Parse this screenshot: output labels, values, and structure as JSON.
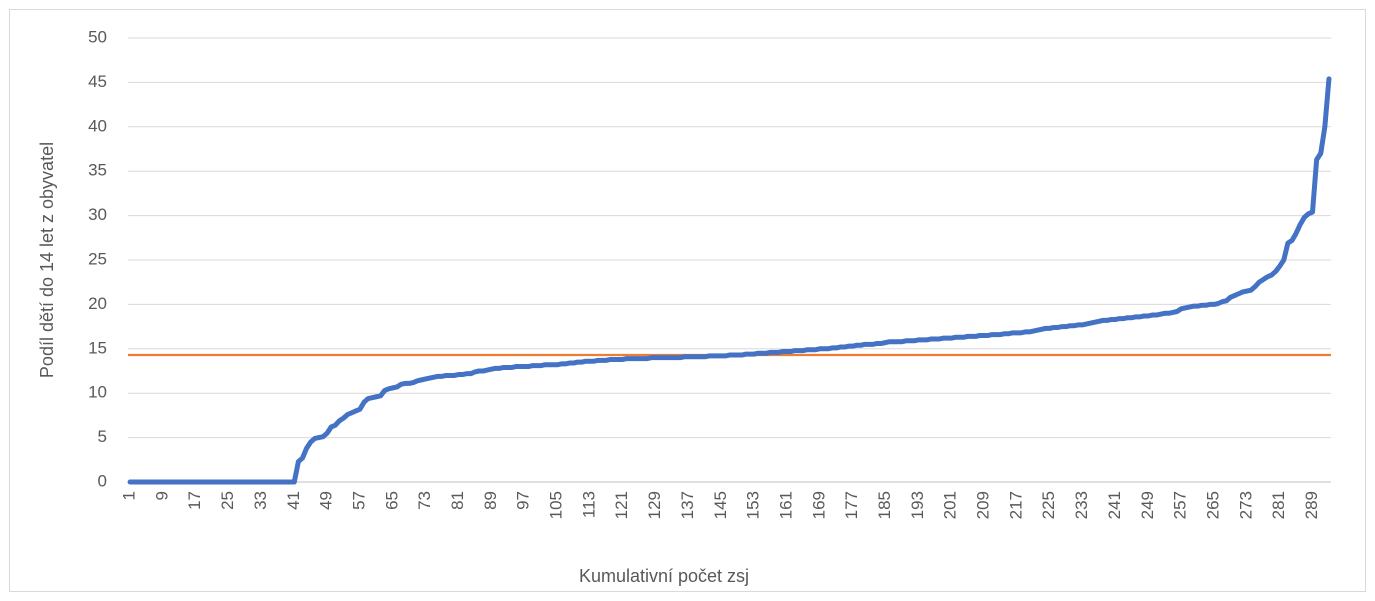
{
  "chart_data": {
    "type": "line",
    "x_label": "Kumulativní počet zsj",
    "y_label": "Podíl dětí do 14 let z obyvatel",
    "ylim": [
      0,
      50
    ],
    "yticks": [
      0,
      5,
      10,
      15,
      20,
      25,
      30,
      35,
      40,
      45,
      50
    ],
    "grid": true,
    "reference_line": {
      "value": 14.3,
      "color": "#ed7d31"
    },
    "categories": [
      "1",
      null,
      null,
      null,
      null,
      null,
      null,
      null,
      "9",
      null,
      null,
      null,
      null,
      null,
      null,
      null,
      "17",
      null,
      null,
      null,
      null,
      null,
      null,
      null,
      "25",
      null,
      null,
      null,
      null,
      null,
      null,
      null,
      "33",
      null,
      null,
      null,
      null,
      null,
      null,
      null,
      "41",
      null,
      null,
      null,
      null,
      null,
      null,
      null,
      "49",
      null,
      null,
      null,
      null,
      null,
      null,
      null,
      "57",
      null,
      null,
      null,
      null,
      null,
      null,
      null,
      "65",
      null,
      null,
      null,
      null,
      null,
      null,
      null,
      "73",
      null,
      null,
      null,
      null,
      null,
      null,
      null,
      "81",
      null,
      null,
      null,
      null,
      null,
      null,
      null,
      "89",
      null,
      null,
      null,
      null,
      null,
      null,
      null,
      "97",
      null,
      null,
      null,
      null,
      null,
      null,
      null,
      "105",
      null,
      null,
      null,
      null,
      null,
      null,
      null,
      "113",
      null,
      null,
      null,
      null,
      null,
      null,
      null,
      "121",
      null,
      null,
      null,
      null,
      null,
      null,
      null,
      "129",
      null,
      null,
      null,
      null,
      null,
      null,
      null,
      "137",
      null,
      null,
      null,
      null,
      null,
      null,
      null,
      "145",
      null,
      null,
      null,
      null,
      null,
      null,
      null,
      "153",
      null,
      null,
      null,
      null,
      null,
      null,
      null,
      "161",
      null,
      null,
      null,
      null,
      null,
      null,
      null,
      "169",
      null,
      null,
      null,
      null,
      null,
      null,
      null,
      "177",
      null,
      null,
      null,
      null,
      null,
      null,
      null,
      "185",
      null,
      null,
      null,
      null,
      null,
      null,
      null,
      "193",
      null,
      null,
      null,
      null,
      null,
      null,
      null,
      "201",
      null,
      null,
      null,
      null,
      null,
      null,
      null,
      "209",
      null,
      null,
      null,
      null,
      null,
      null,
      null,
      "217",
      null,
      null,
      null,
      null,
      null,
      null,
      null,
      "225",
      null,
      null,
      null,
      null,
      null,
      null,
      null,
      "233",
      null,
      null,
      null,
      null,
      null,
      null,
      null,
      "241",
      null,
      null,
      null,
      null,
      null,
      null,
      null,
      "249",
      null,
      null,
      null,
      null,
      null,
      null,
      null,
      "257",
      null,
      null,
      null,
      null,
      null,
      null,
      null,
      "265",
      null,
      null,
      null,
      null,
      null,
      null,
      null,
      "273",
      null,
      null,
      null,
      null,
      null,
      null,
      null,
      "281",
      null,
      null,
      null,
      null,
      null,
      null,
      null,
      "289",
      null,
      null,
      null,
      null
    ],
    "series": [
      {
        "color": "#4472c4",
        "values": [
          0,
          0,
          0,
          0,
          0,
          0,
          0,
          0,
          0,
          0,
          0,
          0,
          0,
          0,
          0,
          0,
          0,
          0,
          0,
          0,
          0,
          0,
          0,
          0,
          0,
          0,
          0,
          0,
          0,
          0,
          0,
          0,
          0,
          0,
          0,
          0,
          0,
          0,
          0,
          0,
          0,
          2.3,
          2.7,
          3.8,
          4.5,
          4.9,
          5.0,
          5.1,
          5.5,
          6.2,
          6.4,
          6.9,
          7.2,
          7.6,
          7.8,
          8.0,
          8.2,
          9.0,
          9.4,
          9.5,
          9.6,
          9.7,
          10.3,
          10.5,
          10.6,
          10.7,
          11.0,
          11.1,
          11.1,
          11.2,
          11.4,
          11.5,
          11.6,
          11.7,
          11.8,
          11.9,
          11.9,
          12.0,
          12.0,
          12.0,
          12.1,
          12.1,
          12.2,
          12.2,
          12.4,
          12.5,
          12.5,
          12.6,
          12.7,
          12.8,
          12.8,
          12.9,
          12.9,
          12.9,
          13.0,
          13.0,
          13.0,
          13.0,
          13.1,
          13.1,
          13.1,
          13.2,
          13.2,
          13.2,
          13.2,
          13.3,
          13.3,
          13.4,
          13.4,
          13.5,
          13.5,
          13.6,
          13.6,
          13.6,
          13.7,
          13.7,
          13.7,
          13.8,
          13.8,
          13.8,
          13.8,
          13.9,
          13.9,
          13.9,
          13.9,
          13.9,
          13.9,
          14.0,
          14.0,
          14.0,
          14.0,
          14.0,
          14.0,
          14.0,
          14.0,
          14.1,
          14.1,
          14.1,
          14.1,
          14.1,
          14.1,
          14.2,
          14.2,
          14.2,
          14.2,
          14.2,
          14.3,
          14.3,
          14.3,
          14.3,
          14.4,
          14.4,
          14.4,
          14.5,
          14.5,
          14.5,
          14.6,
          14.6,
          14.6,
          14.7,
          14.7,
          14.7,
          14.8,
          14.8,
          14.8,
          14.9,
          14.9,
          14.9,
          15.0,
          15.0,
          15.0,
          15.1,
          15.1,
          15.2,
          15.2,
          15.3,
          15.3,
          15.4,
          15.4,
          15.5,
          15.5,
          15.5,
          15.6,
          15.6,
          15.7,
          15.8,
          15.8,
          15.8,
          15.8,
          15.9,
          15.9,
          15.9,
          16.0,
          16.0,
          16.0,
          16.1,
          16.1,
          16.1,
          16.2,
          16.2,
          16.2,
          16.3,
          16.3,
          16.3,
          16.4,
          16.4,
          16.4,
          16.5,
          16.5,
          16.5,
          16.6,
          16.6,
          16.6,
          16.7,
          16.7,
          16.8,
          16.8,
          16.8,
          16.9,
          16.9,
          17.0,
          17.1,
          17.2,
          17.3,
          17.3,
          17.4,
          17.4,
          17.5,
          17.5,
          17.6,
          17.6,
          17.7,
          17.7,
          17.8,
          17.9,
          18.0,
          18.1,
          18.2,
          18.2,
          18.3,
          18.3,
          18.4,
          18.4,
          18.5,
          18.5,
          18.6,
          18.6,
          18.7,
          18.7,
          18.8,
          18.8,
          18.9,
          19.0,
          19.0,
          19.1,
          19.2,
          19.5,
          19.6,
          19.7,
          19.8,
          19.8,
          19.9,
          19.9,
          20.0,
          20.0,
          20.1,
          20.3,
          20.4,
          20.8,
          21.0,
          21.2,
          21.4,
          21.5,
          21.6,
          22.0,
          22.5,
          22.8,
          23.1,
          23.3,
          23.7,
          24.3,
          25.0,
          26.9,
          27.2,
          28.0,
          29.0,
          29.8,
          30.2,
          30.4,
          36.3,
          37.0,
          40.0,
          45.4
        ]
      }
    ]
  }
}
